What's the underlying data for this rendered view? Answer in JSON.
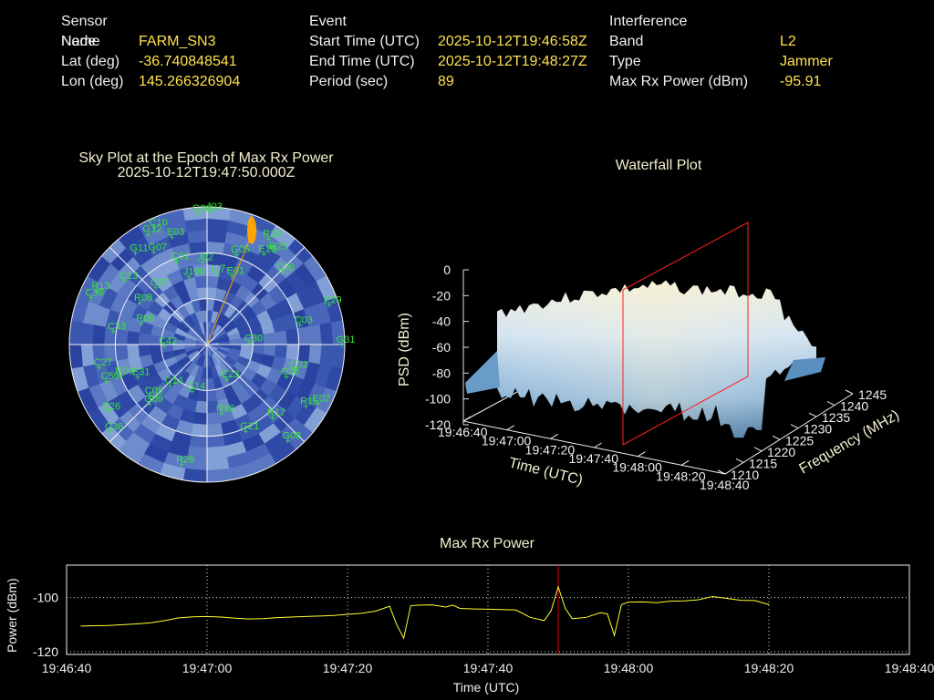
{
  "header": {
    "node": {
      "heading": "Sensor Node",
      "rows": [
        {
          "label": "Name",
          "value": "FARM_SN3"
        },
        {
          "label": "Lat (deg)",
          "value": "-36.740848541"
        },
        {
          "label": "Lon (deg)",
          "value": "145.266326904"
        }
      ]
    },
    "event": {
      "heading": "Event",
      "rows": [
        {
          "label": "Start Time (UTC)",
          "value": "2025-10-12T19:46:58Z"
        },
        {
          "label": "End Time (UTC)",
          "value": "2025-10-12T19:48:27Z"
        },
        {
          "label": "Period (sec)",
          "value": "89"
        }
      ]
    },
    "interference": {
      "heading": "Interference",
      "rows": [
        {
          "label": "Band",
          "value": "L2"
        },
        {
          "label": "Type",
          "value": "Jammer"
        },
        {
          "label": "Max Rx Power (dBm)",
          "value": "-95.91"
        }
      ]
    }
  },
  "chart_data": [
    {
      "type": "scatter",
      "title": "Sky Plot at the Epoch of Max Rx Power",
      "subtitle": "2025-10-12T19:47:50.000Z",
      "projection": "polar",
      "axis_note": "azimuth 0-360 deg (north up), elevation rings at 0/30/60 deg",
      "background": "heatmap of received power per az/el cell (blue shades)",
      "interferer_direction": {
        "azimuth_deg": 22,
        "elevation_deg": 12,
        "color": "#ffa500"
      },
      "satellites": [
        {
          "prn": "G12",
          "az": 332,
          "el": 8
        },
        {
          "prn": "C10",
          "az": 336,
          "el": 6
        },
        {
          "prn": "G07",
          "az": 330,
          "el": 20
        },
        {
          "prn": "G11",
          "az": 322,
          "el": 14
        },
        {
          "prn": "E03",
          "az": 342,
          "el": 16
        },
        {
          "prn": "G26",
          "az": 356,
          "el": 4
        },
        {
          "prn": "J03",
          "az": 2,
          "el": 3
        },
        {
          "prn": "R19",
          "az": 30,
          "el": 10
        },
        {
          "prn": "R25",
          "az": 36,
          "el": 15
        },
        {
          "prn": "E19",
          "az": 32,
          "el": 20
        },
        {
          "prn": "G05",
          "az": 18,
          "el": 28
        },
        {
          "prn": "E01",
          "az": 20,
          "el": 42
        },
        {
          "prn": "J02",
          "az": 357,
          "el": 36
        },
        {
          "prn": "I17",
          "az": 8,
          "el": 43
        },
        {
          "prn": "J199",
          "az": 345,
          "el": 44
        },
        {
          "prn": "C01",
          "az": 340,
          "el": 32
        },
        {
          "prn": "C13",
          "az": 308,
          "el": 22
        },
        {
          "prn": "C37",
          "az": 318,
          "el": 40
        },
        {
          "prn": "R13",
          "az": 296,
          "el": 10
        },
        {
          "prn": "C38",
          "az": 292,
          "el": 8
        },
        {
          "prn": "R08",
          "az": 302,
          "el": 38
        },
        {
          "prn": "R06",
          "az": 288,
          "el": 45
        },
        {
          "prn": "C33",
          "az": 278,
          "el": 28
        },
        {
          "prn": "C28",
          "az": 46,
          "el": 22
        },
        {
          "prn": "C03",
          "az": 78,
          "el": 28
        },
        {
          "prn": "E29",
          "az": 72,
          "el": 6
        },
        {
          "prn": "C30",
          "az": 88,
          "el": 62
        },
        {
          "prn": "G31",
          "az": 90,
          "el": 2
        },
        {
          "prn": "C42",
          "az": 268,
          "el": 62
        },
        {
          "prn": "C59",
          "az": 250,
          "el": 20
        },
        {
          "prn": "C27",
          "az": 258,
          "el": 18
        },
        {
          "prn": "R09",
          "az": 250,
          "el": 30
        },
        {
          "prn": "E31",
          "az": 245,
          "el": 40
        },
        {
          "prn": "C14",
          "az": 222,
          "el": 54
        },
        {
          "prn": "C05",
          "az": 228,
          "el": 40
        },
        {
          "prn": "G09",
          "az": 224,
          "el": 36
        },
        {
          "prn": "E26",
          "az": 236,
          "el": 12
        },
        {
          "prn": "C36",
          "az": 228,
          "el": 5
        },
        {
          "prn": "G14",
          "az": 198,
          "el": 58
        },
        {
          "prn": "E23",
          "az": 150,
          "el": 64
        },
        {
          "prn": "C26",
          "az": 112,
          "el": 34
        },
        {
          "prn": "C32",
          "az": 106,
          "el": 30
        },
        {
          "prn": "R15",
          "az": 122,
          "el": 14
        },
        {
          "prn": "E02",
          "az": 118,
          "el": 8
        },
        {
          "prn": "R17",
          "az": 138,
          "el": 26
        },
        {
          "prn": "R16",
          "az": 168,
          "el": 44
        },
        {
          "prn": "G21",
          "az": 156,
          "el": 28
        },
        {
          "prn": "G08",
          "az": 140,
          "el": 8
        },
        {
          "prn": "R26",
          "az": 192,
          "el": 10
        }
      ]
    },
    {
      "type": "surface",
      "title": "Waterfall Plot",
      "xlabel": "Time (UTC)",
      "ylabel": "Frequency (MHz)",
      "zlabel": "PSD (dBm)",
      "x_ticks": [
        "19:46:40",
        "19:47:00",
        "19:47:20",
        "19:47:40",
        "19:48:00",
        "19:48:20",
        "19:48:40"
      ],
      "y_ticks": [
        "1210",
        "1215",
        "1220",
        "1225",
        "1230",
        "1235",
        "1240",
        "1245"
      ],
      "z_ticks": [
        "0",
        "-20",
        "-40",
        "-60",
        "-80",
        "-100",
        "-120"
      ],
      "zlim": [
        -120,
        0
      ],
      "marker_plane_time": "19:47:50",
      "marker_color": "#ff2020",
      "surface_level_dbm": -40,
      "noise_floor_dbm": -100
    },
    {
      "type": "line",
      "title": "Max Rx Power",
      "xlabel": "Time (UTC)",
      "ylabel": "Power (dBm)",
      "x_ticks": [
        "19:46:40",
        "19:47:00",
        "19:47:20",
        "19:47:40",
        "19:48:00",
        "19:48:20",
        "19:48:40"
      ],
      "y_ticks": [
        "-100",
        "-120"
      ],
      "ylim": [
        -121,
        -88
      ],
      "marker_time_sec": 70,
      "marker_color": "#e00000",
      "line_color": "#ffff33",
      "grid": true,
      "series": [
        {
          "x_sec": [
            2,
            4,
            6,
            8,
            10,
            12,
            14,
            16,
            18,
            20,
            22,
            24,
            26,
            28,
            30,
            32,
            34,
            36,
            38,
            40,
            42,
            44,
            46,
            47,
            48,
            49,
            50,
            52,
            54,
            55,
            56,
            58,
            60,
            62,
            64,
            66,
            68,
            69,
            70,
            71,
            72,
            74,
            76,
            77,
            78,
            79,
            80,
            82,
            84,
            86,
            88,
            90,
            92,
            94,
            96,
            98,
            100
          ],
          "y_dbm": [
            -110.5,
            -110.4,
            -110.3,
            -110,
            -109.7,
            -109.3,
            -108.5,
            -107.5,
            -107.1,
            -107,
            -107.2,
            -107.6,
            -107.9,
            -107.8,
            -107.4,
            -107.2,
            -107,
            -106.8,
            -106.6,
            -106.2,
            -105.8,
            -105,
            -103.2,
            -110,
            -115,
            -103,
            -102.8,
            -102.7,
            -103.5,
            -102.8,
            -104,
            -104.2,
            -104.3,
            -104.4,
            -104.6,
            -107.3,
            -108.5,
            -104.8,
            -96,
            -104,
            -107.8,
            -107.3,
            -105.6,
            -106,
            -114,
            -102.6,
            -101.7,
            -101.6,
            -101.9,
            -101.3,
            -101.2,
            -100.8,
            -99.6,
            -100.3,
            -101,
            -101.1,
            -102.6
          ]
        }
      ]
    }
  ]
}
